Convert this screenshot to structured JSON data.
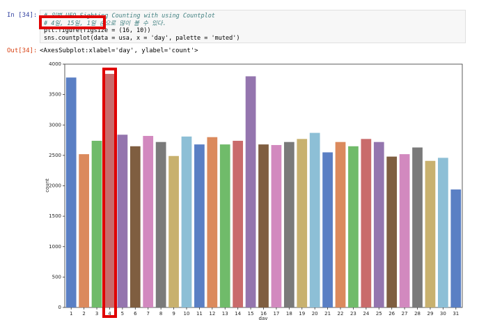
{
  "cell": {
    "in_prompt": "In [34]:",
    "code": [
      "# 일별 UFO Sighting Counting with using Countplot",
      "# 4일, 15일, 1일 순으로 많이 볼 수 있다.",
      "plt.figure(figsize = (16, 10))",
      "sns.countplot(data = usa, x = 'day', palette = 'muted')"
    ],
    "out_prompt": "Out[34]:",
    "output": "<AxesSubplot:xlabel='day', ylabel='count'>"
  },
  "chart_data": {
    "type": "bar",
    "x_label": "day",
    "y_label": "count",
    "categories": [
      "1",
      "2",
      "3",
      "4",
      "5",
      "6",
      "7",
      "8",
      "9",
      "10",
      "11",
      "12",
      "13",
      "14",
      "15",
      "16",
      "17",
      "18",
      "19",
      "20",
      "21",
      "22",
      "23",
      "24",
      "25",
      "26",
      "27",
      "28",
      "29",
      "30",
      "31"
    ],
    "values": [
      3780,
      2520,
      2740,
      3840,
      2840,
      2650,
      2820,
      2720,
      2490,
      2810,
      2680,
      2800,
      2680,
      2740,
      3800,
      2680,
      2670,
      2720,
      2770,
      2870,
      2550,
      2720,
      2650,
      2770,
      2720,
      2480,
      2520,
      2630,
      2410,
      2460,
      1940
    ],
    "colors": [
      "#5a7fc4",
      "#db8a5d",
      "#70bb6a",
      "#c96b6b",
      "#9475ae",
      "#7f5e40",
      "#d289bf",
      "#7a7a7a",
      "#c8b16f",
      "#8dbfd6"
    ],
    "ylim": [
      0,
      4000
    ],
    "yticks": [
      0,
      500,
      1000,
      1500,
      2000,
      2500,
      3000,
      3500,
      4000
    ]
  }
}
